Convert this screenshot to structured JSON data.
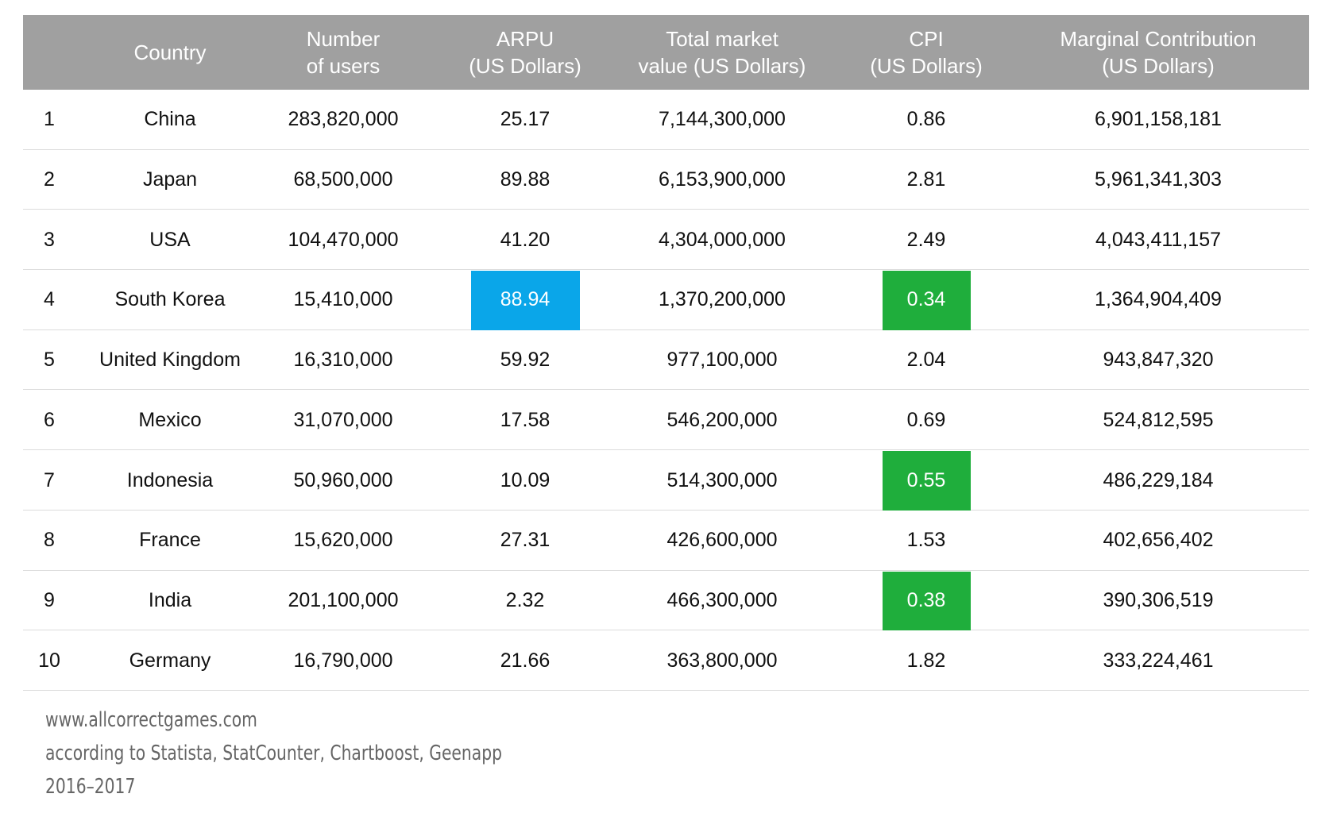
{
  "table": {
    "header": [
      [
        ""
      ],
      [
        "Country"
      ],
      [
        "Number",
        "of users"
      ],
      [
        "ARPU",
        "(US Dollars)"
      ],
      [
        "Total market",
        "value (US Dollars)"
      ],
      [
        "CPI",
        "(US Dollars)"
      ],
      [
        "Marginal Contribution",
        "(US Dollars)"
      ]
    ],
    "rows": [
      [
        "1",
        "China",
        "283,820,000",
        "25.17",
        "7,144,300,000",
        "0.86",
        "6,901,158,181"
      ],
      [
        "2",
        "Japan",
        "68,500,000",
        "89.88",
        "6,153,900,000",
        "2.81",
        "5,961,341,303"
      ],
      [
        "3",
        "USA",
        "104,470,000",
        "41.20",
        "4,304,000,000",
        "2.49",
        "4,043,411,157"
      ],
      [
        "4",
        "South Korea",
        "15,410,000",
        "88.94",
        "1,370,200,000",
        "0.34",
        "1,364,904,409"
      ],
      [
        "5",
        "United Kingdom",
        "16,310,000",
        "59.92",
        "977,100,000",
        "2.04",
        "943,847,320"
      ],
      [
        "6",
        "Mexico",
        "31,070,000",
        "17.58",
        "546,200,000",
        "0.69",
        "524,812,595"
      ],
      [
        "7",
        "Indonesia",
        "50,960,000",
        "10.09",
        "514,300,000",
        "0.55",
        "486,229,184"
      ],
      [
        "8",
        "France",
        "15,620,000",
        "27.31",
        "426,600,000",
        "1.53",
        "402,656,402"
      ],
      [
        "9",
        "India",
        "201,100,000",
        "2.32",
        "466,300,000",
        "0.38",
        "390,306,519"
      ],
      [
        "10",
        "Germany",
        "16,790,000",
        "21.66",
        "363,800,000",
        "1.82",
        "333,224,461"
      ]
    ],
    "highlights": [
      {
        "row": 3,
        "column": 3,
        "color": "#0aa6e9"
      },
      {
        "row": 3,
        "column": 5,
        "color": "#1fae3c"
      },
      {
        "row": 6,
        "column": 5,
        "color": "#1fae3c"
      },
      {
        "row": 8,
        "column": 5,
        "color": "#1fae3c"
      }
    ]
  },
  "footer": [
    "www.allcorrectgames.com",
    "according to Statista, StatCounter, Chartboost, Geenapp",
    "2016–2017"
  ]
}
